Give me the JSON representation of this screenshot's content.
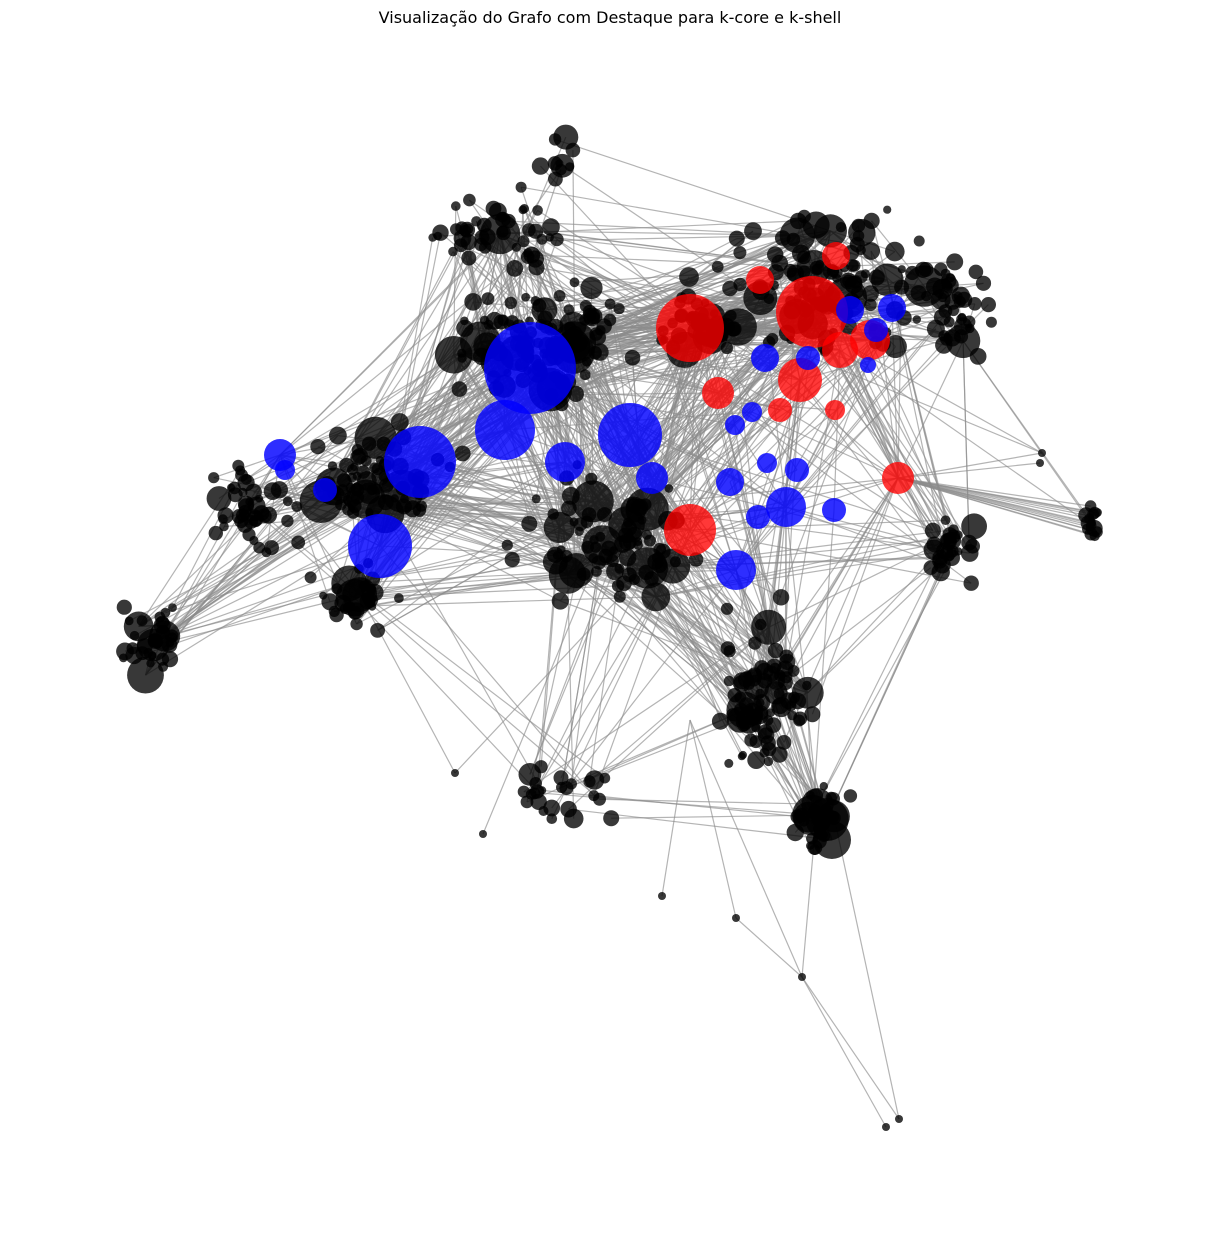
{
  "title": "Visualização do Grafo com Destaque para k-core e k-shell",
  "colors": {
    "background": "#ffffff",
    "edge": "#8c8c8c",
    "node_default": "#000000",
    "node_k_core": "#ff0000",
    "node_k_shell": "#0000ff"
  },
  "legend": null
}
